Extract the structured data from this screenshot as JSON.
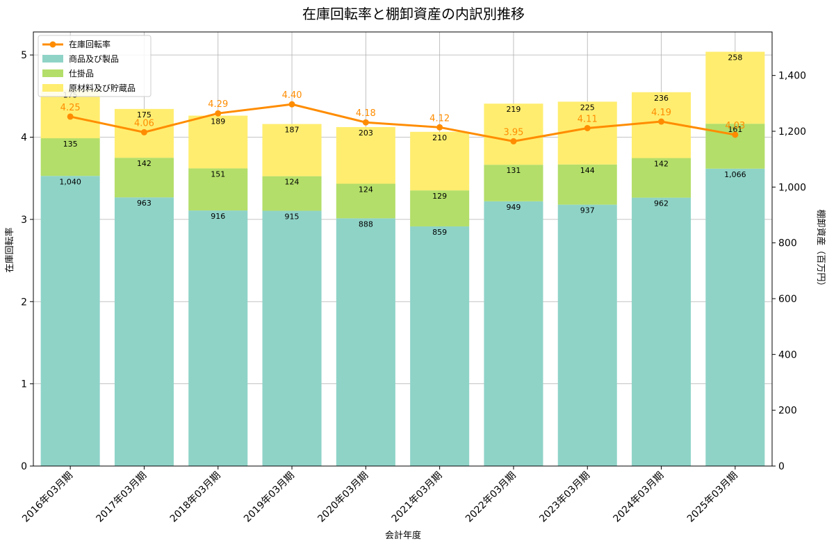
{
  "chart_data": {
    "type": "bar",
    "stacked": true,
    "title": "在庫回転率と棚卸資産の内訳別推移",
    "xlabel": "会計年度",
    "ylabel_left": "在庫回転率",
    "ylabel_right": "棚卸資産（百万円）",
    "categories": [
      "2016年03月期",
      "2017年03月期",
      "2018年03月期",
      "2019年03月期",
      "2020年03月期",
      "2021年03月期",
      "2022年03月期",
      "2023年03月期",
      "2024年03月期",
      "2025年03月期"
    ],
    "series": [
      {
        "name": "商品及び製品",
        "axis": "right",
        "color": "#8fd3c7",
        "values": [
          1040,
          963,
          916,
          915,
          888,
          859,
          949,
          937,
          962,
          1066
        ],
        "labels": [
          "1,040",
          "963",
          "916",
          "915",
          "888",
          "859",
          "949",
          "937",
          "962",
          "1,066"
        ]
      },
      {
        "name": "仕掛品",
        "axis": "right",
        "color": "#b3de69",
        "values": [
          135,
          142,
          151,
          124,
          124,
          129,
          131,
          144,
          142,
          161
        ],
        "labels": [
          "135",
          "142",
          "151",
          "124",
          "124",
          "129",
          "131",
          "144",
          "142",
          "161"
        ]
      },
      {
        "name": "原材料及び貯蔵品",
        "axis": "right",
        "color": "#ffed6f",
        "values": [
          175,
          175,
          189,
          187,
          203,
          210,
          219,
          225,
          236,
          258
        ],
        "labels": [
          "175",
          "175",
          "189",
          "187",
          "203",
          "210",
          "219",
          "225",
          "236",
          "258"
        ]
      }
    ],
    "line": {
      "name": "在庫回転率",
      "axis": "left",
      "color": "#ff8c00",
      "values": [
        4.25,
        4.06,
        4.29,
        4.4,
        4.18,
        4.12,
        3.95,
        4.11,
        4.19,
        4.03
      ],
      "labels": [
        "4.25",
        "4.06",
        "4.29",
        "4.40",
        "4.18",
        "4.12",
        "3.95",
        "4.11",
        "4.19",
        "4.03"
      ]
    },
    "ylim_left": [
      0,
      5.28
    ],
    "ylim_right": [
      0,
      1556
    ],
    "yticks_left": [
      "0",
      "1",
      "2",
      "3",
      "4",
      "5"
    ],
    "yticks_right": [
      "0",
      "200",
      "400",
      "600",
      "800",
      "1,000",
      "1,200",
      "1,400"
    ],
    "grid": true,
    "legend": "top-left"
  }
}
